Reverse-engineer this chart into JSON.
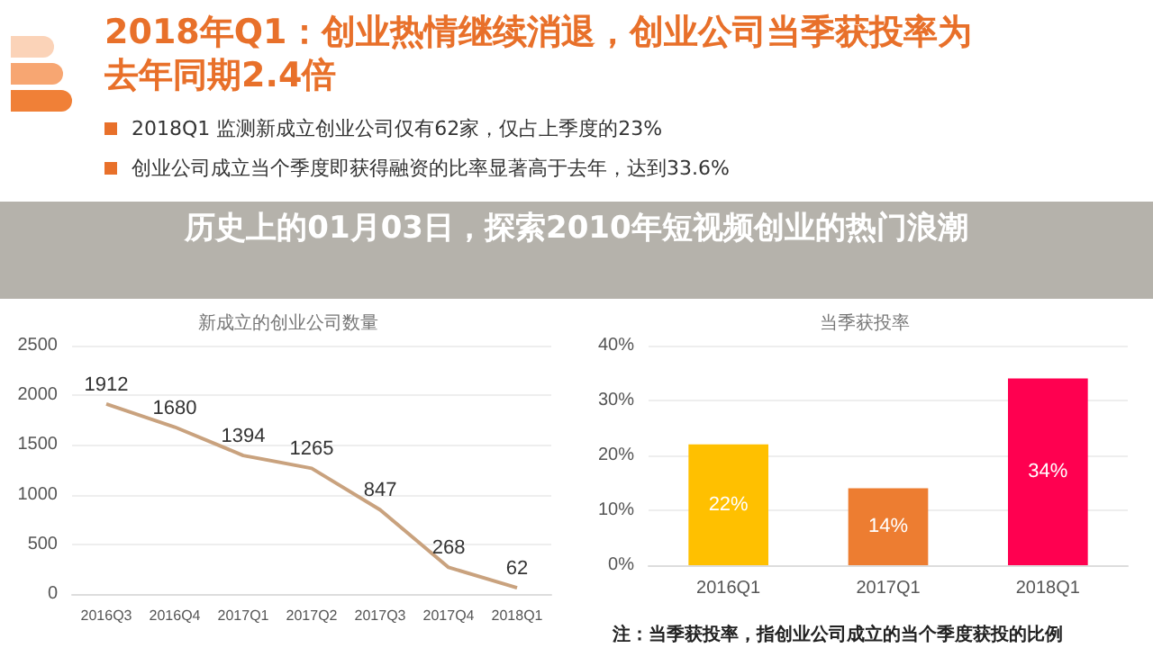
{
  "chart_data": [
    {
      "type": "other",
      "title": "2018年Q1：创业热情继续消退，创业公司当季获投率为去年同期2.4倍",
      "subtitle": "历史上的01月03日，探索2010年短视频创业的热门浪潮",
      "annotations": [
        "2018Q1 监测新成立创业公司仅有62家，仅占上季度的23%",
        "创业公司成立当个季度即获得融资的比率显著高于去年，达到33.6%"
      ]
    },
    {
      "type": "line",
      "title": "新成立的创业公司数量",
      "categories": [
        "2016Q3",
        "2016Q4",
        "2017Q1",
        "2017Q2",
        "2017Q3",
        "2017Q4",
        "2018Q1"
      ],
      "series": [
        {
          "color": "#c9a27e",
          "values": [
            1912,
            1680,
            1394,
            1265,
            847,
            268,
            62
          ]
        }
      ],
      "ylim": [
        0,
        2500
      ],
      "yticks": [
        0,
        500,
        1000,
        1500,
        2000,
        2500
      ],
      "grid": "y",
      "data_labels": true
    },
    {
      "type": "bar",
      "title": "当季获投率",
      "categories": [
        "2016Q1",
        "2017Q1",
        "2018Q1"
      ],
      "values": [
        22,
        14,
        34
      ],
      "colors": [
        "#ffc000",
        "#ed7d31",
        "#ff0050"
      ],
      "value_labels": [
        "22%",
        "14%",
        "34%"
      ],
      "ylim": [
        0,
        40
      ],
      "yticks": [
        {
          "value": 0,
          "label": "0%"
        },
        {
          "value": 10,
          "label": "10%"
        },
        {
          "value": 20,
          "label": "20%"
        },
        {
          "value": 30,
          "label": "30%"
        },
        {
          "value": 40,
          "label": "40%"
        }
      ],
      "grid": "y",
      "annotations": [
        "注：当季获投率，指创业公司成立的当个季度获投的比例"
      ]
    }
  ]
}
